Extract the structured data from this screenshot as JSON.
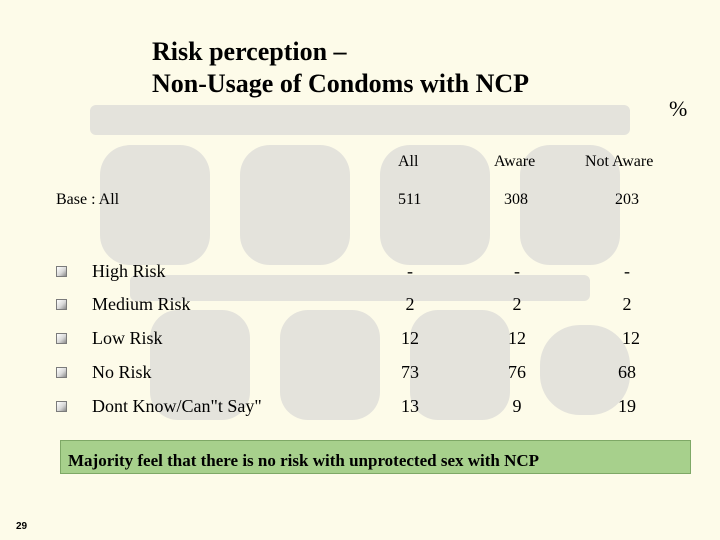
{
  "title_line1": "Risk perception –",
  "title_line2": "Non-Usage of Condoms with NCP",
  "unit": "%",
  "columns": [
    "All",
    "Aware",
    "Not Aware"
  ],
  "base": {
    "label": "Base : All",
    "values": [
      "511",
      "308",
      "203"
    ]
  },
  "rows": [
    {
      "label": "High Risk",
      "values": [
        "-",
        "-",
        "-"
      ]
    },
    {
      "label": "Medium Risk",
      "values": [
        "2",
        "2",
        "2"
      ]
    },
    {
      "label": "Low Risk",
      "values": [
        "12",
        "12",
        "12"
      ]
    },
    {
      "label": "No Risk",
      "values": [
        "73",
        "76",
        "68"
      ]
    },
    {
      "label": "Dont Know/Can\"t Say\"",
      "values": [
        "13",
        "9",
        "19"
      ]
    }
  ],
  "summary": "Majority feel that there is no risk with unprotected sex with NCP",
  "page_number": "29",
  "colors": {
    "background": "#fdfbe9",
    "summary_fill": "#a7d08c",
    "watermark": "#e2e2dc"
  }
}
